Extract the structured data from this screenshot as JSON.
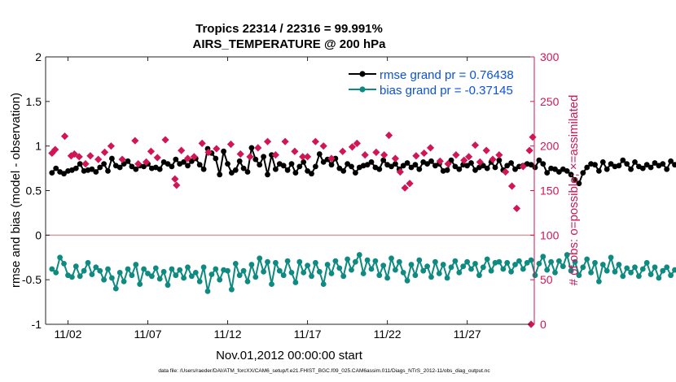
{
  "chart_data": {
    "type": "line",
    "title_line1": "Tropics 22314 / 22316 = 99.991%",
    "title_line2": "AIRS_TEMPERATURE @ 200 hPa",
    "xlabel": "Nov.01,2012 00:00:00 start",
    "ylabel_left": "rmse and bias (model - observation)",
    "ylabel_right": "# of obs: o=possible; ×=assimilated",
    "footer": "data file: /Users/raeder/DAI/ATM_forcXX/CAM6_setup/f.e21.FHIST_BGC.f09_025.CAM6assim.011/Diags_NTrS_2012-11/obs_diag_output.nc",
    "x_range": [
      0.6,
      31.2
    ],
    "ylim_left": [
      -1,
      2
    ],
    "ylim_right": [
      0,
      300
    ],
    "x_ticks": [
      {
        "value": 2,
        "label": "11/02"
      },
      {
        "value": 7,
        "label": "11/07"
      },
      {
        "value": 12,
        "label": "11/12"
      },
      {
        "value": 17,
        "label": "11/17"
      },
      {
        "value": 22,
        "label": "11/22"
      },
      {
        "value": 27,
        "label": "11/27"
      }
    ],
    "y_ticks_left": [
      {
        "value": -1,
        "label": "-1"
      },
      {
        "value": -0.5,
        "label": "-0.5"
      },
      {
        "value": 0,
        "label": "0"
      },
      {
        "value": 0.5,
        "label": "0.5"
      },
      {
        "value": 1,
        "label": "1"
      },
      {
        "value": 1.5,
        "label": "1.5"
      },
      {
        "value": 2,
        "label": "2"
      }
    ],
    "y_ticks_right": [
      {
        "value": 0,
        "label": "0"
      },
      {
        "value": 50,
        "label": "50"
      },
      {
        "value": 100,
        "label": "100"
      },
      {
        "value": 150,
        "label": "150"
      },
      {
        "value": 200,
        "label": "200"
      },
      {
        "value": 250,
        "label": "250"
      },
      {
        "value": 300,
        "label": "300"
      }
    ],
    "x_start": 1.0,
    "x_step": 0.25,
    "series": [
      {
        "name": "rmse grand pr = 0.76438",
        "color": "#000000",
        "axis": "left",
        "values": [
          0.7,
          0.75,
          0.71,
          0.69,
          0.72,
          0.73,
          0.75,
          0.8,
          0.72,
          0.73,
          0.74,
          0.71,
          0.76,
          0.8,
          0.72,
          0.86,
          0.78,
          0.76,
          0.8,
          0.83,
          0.77,
          0.74,
          0.78,
          0.77,
          0.8,
          0.75,
          0.76,
          0.74,
          0.82,
          0.8,
          0.77,
          0.85,
          0.8,
          0.82,
          0.78,
          0.83,
          0.86,
          0.79,
          0.74,
          0.97,
          0.92,
          0.86,
          0.68,
          0.94,
          0.8,
          0.7,
          0.73,
          0.83,
          0.75,
          0.71,
          0.98,
          0.85,
          0.79,
          0.88,
          0.68,
          0.9,
          0.74,
          0.8,
          0.78,
          0.73,
          0.8,
          0.7,
          0.77,
          0.82,
          0.72,
          0.69,
          0.77,
          0.91,
          0.82,
          0.85,
          0.79,
          0.86,
          0.75,
          0.72,
          0.8,
          0.77,
          0.7,
          0.76,
          0.78,
          0.79,
          0.82,
          0.76,
          0.74,
          0.84,
          0.79,
          0.77,
          0.8,
          0.74,
          0.78,
          0.81,
          0.76,
          0.79,
          0.74,
          0.82,
          0.8,
          0.83,
          0.78,
          0.8,
          0.72,
          0.73,
          0.84,
          0.77,
          0.74,
          0.79,
          0.78,
          0.81,
          0.73,
          0.76,
          0.78,
          0.75,
          0.82,
          0.76,
          0.84,
          0.73,
          0.78,
          0.81,
          0.74,
          0.77,
          0.78,
          0.8,
          0.79,
          0.76,
          0.84,
          0.8,
          0.7,
          0.75,
          0.74,
          0.71,
          0.74,
          0.72,
          0.68,
          0.62,
          0.58,
          0.7,
          0.76,
          0.8,
          0.79,
          0.72,
          0.82,
          0.74,
          0.8,
          0.77,
          0.78,
          0.84,
          0.8,
          0.74,
          0.82,
          0.77,
          0.75,
          0.79,
          0.76,
          0.81,
          0.78,
          0.8,
          0.74,
          0.83,
          0.79,
          0.75,
          0.8,
          0.78,
          0.72,
          0.82,
          0.74,
          0.64,
          0.76,
          0.7,
          0.8,
          0.74,
          0.86,
          0.82,
          0.72
        ],
        "marker": "circle"
      },
      {
        "name": "bias grand pr = -0.37145",
        "color": "#0f8a80",
        "axis": "left",
        "values": [
          -0.38,
          -0.42,
          -0.25,
          -0.32,
          -0.45,
          -0.47,
          -0.35,
          -0.46,
          -0.4,
          -0.31,
          -0.44,
          -0.36,
          -0.4,
          -0.5,
          -0.38,
          -0.48,
          -0.6,
          -0.42,
          -0.52,
          -0.38,
          -0.45,
          -0.33,
          -0.55,
          -0.38,
          -0.43,
          -0.46,
          -0.37,
          -0.49,
          -0.41,
          -0.56,
          -0.38,
          -0.45,
          -0.39,
          -0.48,
          -0.36,
          -0.46,
          -0.42,
          -0.52,
          -0.36,
          -0.63,
          -0.44,
          -0.38,
          -0.5,
          -0.39,
          -0.4,
          -0.61,
          -0.32,
          -0.45,
          -0.4,
          -0.52,
          -0.33,
          -0.47,
          -0.26,
          -0.41,
          -0.3,
          -0.55,
          -0.31,
          -0.4,
          -0.45,
          -0.29,
          -0.42,
          -0.53,
          -0.3,
          -0.42,
          -0.34,
          -0.46,
          -0.31,
          -0.41,
          -0.55,
          -0.33,
          -0.43,
          -0.29,
          -0.37,
          -0.46,
          -0.27,
          -0.39,
          -0.3,
          -0.22,
          -0.43,
          -0.28,
          -0.38,
          -0.29,
          -0.45,
          -0.34,
          -0.48,
          -0.26,
          -0.39,
          -0.3,
          -0.42,
          -0.51,
          -0.33,
          -0.45,
          -0.28,
          -0.4,
          -0.35,
          -0.47,
          -0.3,
          -0.43,
          -0.33,
          -0.48,
          -0.36,
          -0.29,
          -0.42,
          -0.35,
          -0.3,
          -0.38,
          -0.32,
          -0.45,
          -0.36,
          -0.27,
          -0.4,
          -0.31,
          -0.3,
          -0.38,
          -0.31,
          -0.41,
          -0.33,
          -0.29,
          -0.38,
          -0.31,
          -0.28,
          -0.45,
          -0.32,
          -0.24,
          -0.39,
          -0.3,
          -0.42,
          -0.29,
          -0.35,
          -0.22,
          -0.4,
          -0.3,
          -0.45,
          -0.36,
          -0.27,
          -0.42,
          -0.31,
          -0.52,
          -0.33,
          -0.4,
          -0.25,
          -0.41,
          -0.33,
          -0.46,
          -0.37,
          -0.42,
          -0.36,
          -0.46,
          -0.38,
          -0.31,
          -0.44,
          -0.36,
          -0.48,
          -0.4,
          -0.36,
          -0.45,
          -0.39,
          -0.42,
          -0.34,
          -0.5,
          -0.36,
          -0.31,
          -0.45,
          -0.33,
          -0.4,
          -0.28,
          -0.48,
          -0.25,
          -0.38,
          -0.33,
          -0.54,
          -0.43,
          -0.6,
          -0.42,
          -0.33
        ],
        "marker": "circle"
      },
      {
        "name": "# of obs",
        "color": "#d01656",
        "axis": "right",
        "marker": "diamond",
        "points": [
          [
            1.0,
            192
          ],
          [
            1.2,
            196
          ],
          [
            1.8,
            211
          ],
          [
            2.2,
            189
          ],
          [
            2.4,
            191
          ],
          [
            2.7,
            188
          ],
          [
            3.1,
            180
          ],
          [
            3.4,
            189
          ],
          [
            3.9,
            185
          ],
          [
            4.3,
            193
          ],
          [
            4.7,
            200
          ],
          [
            5.4,
            185
          ],
          [
            6.2,
            206
          ],
          [
            6.4,
            180
          ],
          [
            6.9,
            182
          ],
          [
            7.2,
            194
          ],
          [
            7.6,
            187
          ],
          [
            8.1,
            207
          ],
          [
            8.7,
            163
          ],
          [
            8.8,
            156
          ],
          [
            9.1,
            195
          ],
          [
            9.5,
            186
          ],
          [
            9.9,
            188
          ],
          [
            10.4,
            203
          ],
          [
            10.8,
            193
          ],
          [
            11.3,
            197
          ],
          [
            12.2,
            202
          ],
          [
            12.8,
            191
          ],
          [
            13.4,
            188
          ],
          [
            13.9,
            198
          ],
          [
            14.5,
            205
          ],
          [
            15.0,
            190
          ],
          [
            15.6,
            205
          ],
          [
            16.2,
            194
          ],
          [
            16.7,
            188
          ],
          [
            17.0,
            188
          ],
          [
            17.5,
            205
          ],
          [
            18.0,
            200
          ],
          [
            18.5,
            186
          ],
          [
            19.2,
            194
          ],
          [
            19.8,
            199
          ],
          [
            20.1,
            203
          ],
          [
            20.6,
            190
          ],
          [
            21.3,
            193
          ],
          [
            21.8,
            190
          ],
          [
            22.1,
            212
          ],
          [
            22.5,
            186
          ],
          [
            22.8,
            171
          ],
          [
            23.1,
            153
          ],
          [
            23.4,
            158
          ],
          [
            23.8,
            189
          ],
          [
            24.3,
            192
          ],
          [
            24.7,
            198
          ],
          [
            25.3,
            183
          ],
          [
            25.8,
            180
          ],
          [
            26.3,
            190
          ],
          [
            26.8,
            184
          ],
          [
            27.1,
            188
          ],
          [
            27.5,
            201
          ],
          [
            27.8,
            182
          ],
          [
            28.2,
            195
          ],
          [
            28.6,
            185
          ],
          [
            29.0,
            190
          ],
          [
            29.4,
            171
          ],
          [
            29.8,
            155
          ],
          [
            30.1,
            130
          ],
          [
            30.5,
            177
          ],
          [
            30.9,
            195
          ],
          [
            31.1,
            210
          ]
        ]
      }
    ],
    "zero_point_right": {
      "x": 31.0,
      "value": 0
    }
  }
}
